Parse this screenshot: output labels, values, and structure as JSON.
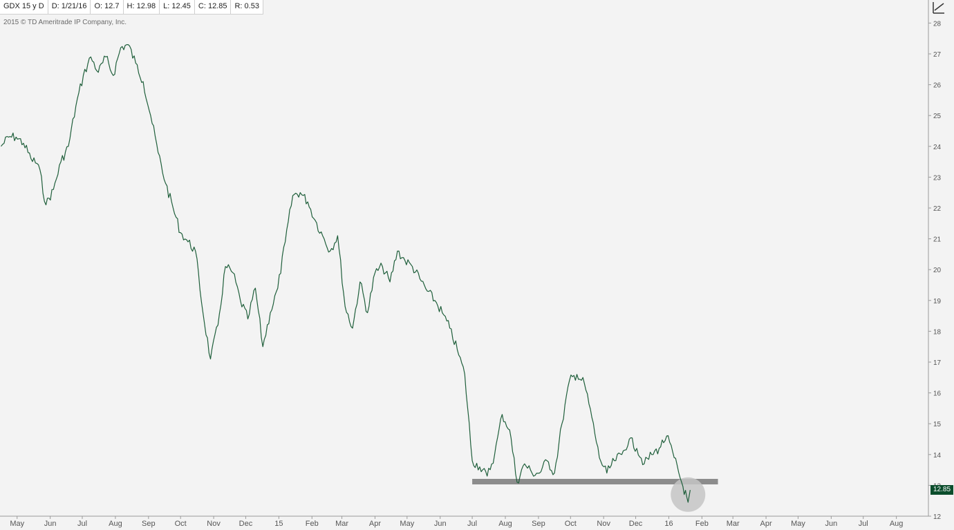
{
  "header": {
    "symbol": "GDX 15 y D",
    "date": "D: 1/21/16",
    "open": "O: 12.7",
    "high": "H: 12.98",
    "low": "L: 12.45",
    "close": "C: 12.85",
    "range": "R: 0.53"
  },
  "copyright": "2015 © TD Ameritrade IP Company, Inc.",
  "last_price_label": "12.85",
  "colors": {
    "line": "#1e5e3a",
    "price_tag": "#0b4d2c",
    "support_line": "#8c8c8c",
    "highlight_circle": "#c4c4c4",
    "background": "#f3f3f3"
  },
  "icons": {
    "toolbar": "drawing-tool-icon"
  },
  "chart_data": {
    "type": "line",
    "ylim": [
      12,
      28.3
    ],
    "yticks": [
      12,
      13,
      14,
      15,
      16,
      17,
      18,
      19,
      20,
      21,
      22,
      23,
      24,
      25,
      26,
      27,
      28
    ],
    "xticks": [
      "May",
      "Jun",
      "Jul",
      "Aug",
      "Sep",
      "Oct",
      "Nov",
      "Dec",
      "15",
      "Feb",
      "Mar",
      "Apr",
      "May",
      "Jun",
      "Jul",
      "Aug",
      "Sep",
      "Oct",
      "Nov",
      "Dec",
      "16",
      "Feb",
      "Mar",
      "Apr",
      "May",
      "Jun",
      "Jul",
      "Aug"
    ],
    "x_domain": [
      "2014-04-15",
      "2016-08-31"
    ],
    "xtick_dates": [
      "2014-05-01",
      "2014-06-01",
      "2014-07-01",
      "2014-08-01",
      "2014-09-01",
      "2014-10-01",
      "2014-11-01",
      "2014-12-01",
      "2015-01-01",
      "2015-02-01",
      "2015-03-01",
      "2015-04-01",
      "2015-05-01",
      "2015-06-01",
      "2015-07-01",
      "2015-08-01",
      "2015-09-01",
      "2015-10-01",
      "2015-11-01",
      "2015-12-01",
      "2016-01-01",
      "2016-02-01",
      "2016-03-01",
      "2016-04-01",
      "2016-05-01",
      "2016-06-01",
      "2016-07-01",
      "2016-08-01"
    ],
    "series": [
      {
        "x": [
          "2014-04-16",
          "2014-04-23",
          "2014-04-30",
          "2014-05-07",
          "2014-05-14",
          "2014-05-21",
          "2014-05-28",
          "2014-06-04",
          "2014-06-11",
          "2014-06-18",
          "2014-06-25",
          "2014-07-02",
          "2014-07-09",
          "2014-07-16",
          "2014-07-23",
          "2014-07-30",
          "2014-08-06",
          "2014-08-13",
          "2014-08-20",
          "2014-08-27",
          "2014-09-03",
          "2014-09-10",
          "2014-09-17",
          "2014-09-24",
          "2014-10-01",
          "2014-10-08",
          "2014-10-15",
          "2014-10-22",
          "2014-10-29",
          "2014-11-05",
          "2014-11-12",
          "2014-11-19",
          "2014-11-26",
          "2014-12-03",
          "2014-12-10",
          "2014-12-17",
          "2014-12-24",
          "2014-12-31",
          "2015-01-07",
          "2015-01-14",
          "2015-01-21",
          "2015-01-28",
          "2015-02-04",
          "2015-02-11",
          "2015-02-18",
          "2015-02-25",
          "2015-03-04",
          "2015-03-11",
          "2015-03-18",
          "2015-03-25",
          "2015-04-01",
          "2015-04-08",
          "2015-04-15",
          "2015-04-22",
          "2015-04-29",
          "2015-05-06",
          "2015-05-13",
          "2015-05-20",
          "2015-05-27",
          "2015-06-03",
          "2015-06-10",
          "2015-06-17",
          "2015-06-24",
          "2015-07-01",
          "2015-07-08",
          "2015-07-15",
          "2015-07-22",
          "2015-07-29",
          "2015-08-05",
          "2015-08-12",
          "2015-08-19",
          "2015-08-26",
          "2015-09-02",
          "2015-09-09",
          "2015-09-16",
          "2015-09-23",
          "2015-09-30",
          "2015-10-07",
          "2015-10-14",
          "2015-10-21",
          "2015-10-28",
          "2015-11-04",
          "2015-11-11",
          "2015-11-18",
          "2015-11-25",
          "2015-12-02",
          "2015-12-09",
          "2015-12-16",
          "2015-12-23",
          "2015-12-30",
          "2016-01-06",
          "2016-01-13",
          "2016-01-19",
          "2016-01-21"
        ],
        "values": [
          24.0,
          24.3,
          24.3,
          24.1,
          23.6,
          23.4,
          22.1,
          22.6,
          23.5,
          24.0,
          25.3,
          26.3,
          26.9,
          26.4,
          26.9,
          26.3,
          27.2,
          27.3,
          26.7,
          26.1,
          25.0,
          23.8,
          22.8,
          22.0,
          21.2,
          20.9,
          20.6,
          18.6,
          17.1,
          18.2,
          20.1,
          19.9,
          19.0,
          18.4,
          19.4,
          17.5,
          18.6,
          19.4,
          20.9,
          22.4,
          22.5,
          22.2,
          21.6,
          21.1,
          20.6,
          21.1,
          18.8,
          18.1,
          19.6,
          18.6,
          19.9,
          20.1,
          19.6,
          20.6,
          20.3,
          20.1,
          19.7,
          19.3,
          19.0,
          18.6,
          18.1,
          17.4,
          16.6,
          13.8,
          13.6,
          13.3,
          14.0,
          15.3,
          14.8,
          13.1,
          13.7,
          13.4,
          13.4,
          13.8,
          13.4,
          15.0,
          16.4,
          16.6,
          16.3,
          15.2,
          13.9,
          13.4,
          13.8,
          14.0,
          14.5,
          14.2,
          13.7,
          14.0,
          14.2,
          14.6,
          13.9,
          13.1,
          12.45,
          12.85
        ]
      }
    ],
    "last_price": 12.85,
    "support_level": 13.12,
    "support_x": [
      "2015-07-01",
      "2016-02-16"
    ],
    "highlight": {
      "x": "2016-01-19",
      "y": 12.7
    }
  }
}
